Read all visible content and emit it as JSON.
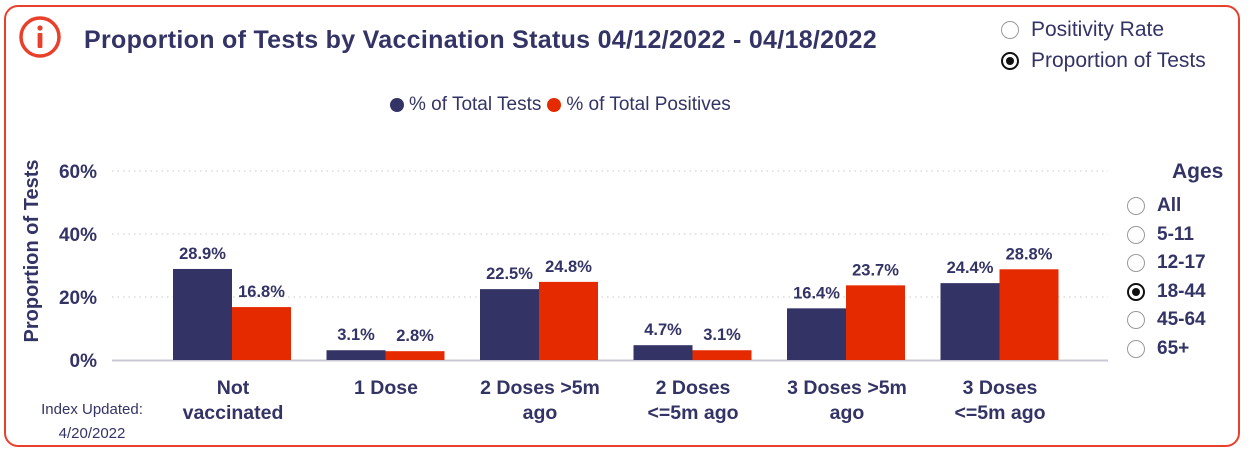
{
  "title": "Proportion of Tests by Vaccination Status 04/12/2022 - 04/18/2022",
  "view_toggle": {
    "options": [
      "Positivity Rate",
      "Proportion of Tests"
    ],
    "selected": "Proportion of Tests"
  },
  "ages": {
    "title": "Ages",
    "options": [
      "All",
      "5-11",
      "12-17",
      "18-44",
      "45-64",
      "65+"
    ],
    "selected": "18-44"
  },
  "index_updated": {
    "label": "Index Updated:",
    "date": "4/20/2022"
  },
  "colors": {
    "tests": "#333366",
    "positives": "#e62a00",
    "border": "#e8402a"
  },
  "chart_data": {
    "type": "bar",
    "ylabel": "Proportion of Tests",
    "ylim": [
      0,
      60
    ],
    "yticks": [
      "0%",
      "20%",
      "40%",
      "60%"
    ],
    "grid": true,
    "legend_position": "top-center",
    "categories": [
      "Not vaccinated",
      "1 Dose",
      "2 Doses >5m ago",
      "2 Doses <=5m ago",
      "3 Doses >5m ago",
      "3 Doses <=5m ago"
    ],
    "series": [
      {
        "name": "% of Total Tests",
        "values": [
          28.9,
          3.1,
          22.5,
          4.7,
          16.4,
          24.4
        ],
        "labels": [
          "28.9%",
          "3.1%",
          "22.5%",
          "4.7%",
          "16.4%",
          "24.4%"
        ]
      },
      {
        "name": "% of Total Positives",
        "values": [
          16.8,
          2.8,
          24.8,
          3.1,
          23.7,
          28.8
        ],
        "labels": [
          "16.8%",
          "2.8%",
          "24.8%",
          "3.1%",
          "23.7%",
          "28.8%"
        ]
      }
    ]
  }
}
